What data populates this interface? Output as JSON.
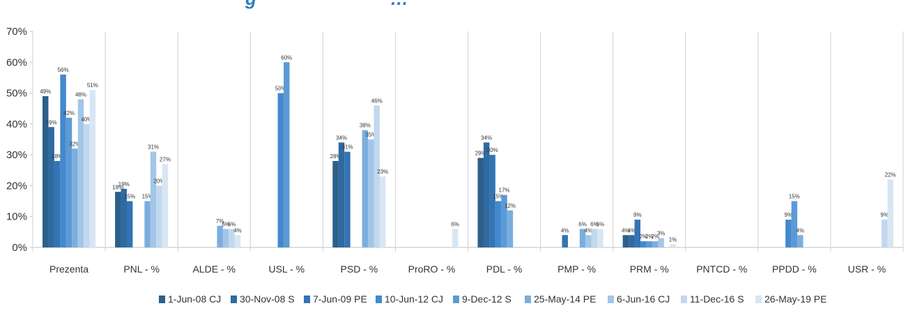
{
  "chart_data": {
    "type": "bar",
    "title": "g",
    "title_fragment_2": "…",
    "ylim": [
      0,
      70
    ],
    "y_ticks": [
      "0%",
      "10%",
      "20%",
      "30%",
      "40%",
      "50%",
      "60%",
      "70%"
    ],
    "grid": "vertical separators between categories and y-axis gridlines not shown",
    "legend_position": "bottom",
    "categories": [
      "Prezenta",
      "PNL - %",
      "ALDE - %",
      "USL - %",
      "PSD - %",
      "ProRO - %",
      "PDL - %",
      "PMP - %",
      "PRM - %",
      "PNTCD - %",
      "PPDD - %",
      "USR - %"
    ],
    "series": [
      {
        "name": "1-Jun-08 CJ",
        "color": "#2c5f8a",
        "values": [
          49,
          18,
          null,
          null,
          28,
          null,
          29,
          null,
          4,
          null,
          null,
          null
        ]
      },
      {
        "name": "30-Nov-08 S",
        "color": "#2f6aa0",
        "values": [
          39,
          19,
          null,
          null,
          34,
          null,
          34,
          null,
          4,
          null,
          null,
          null
        ]
      },
      {
        "name": "7-Jun-09 PE",
        "color": "#3474b4",
        "values": [
          28,
          15,
          null,
          null,
          31,
          null,
          30,
          4,
          9,
          null,
          null,
          null
        ]
      },
      {
        "name": "10-Jun-12 CJ",
        "color": "#4389cd",
        "values": [
          56,
          null,
          null,
          50,
          null,
          null,
          15,
          null,
          2,
          null,
          9,
          null
        ]
      },
      {
        "name": "9-Dec-12 S",
        "color": "#5b9ad6",
        "values": [
          42,
          null,
          null,
          60,
          null,
          null,
          17,
          null,
          2,
          null,
          15,
          null
        ]
      },
      {
        "name": "25-May-14 PE",
        "color": "#7aaede",
        "values": [
          32,
          15,
          7,
          null,
          38,
          null,
          12,
          6,
          2,
          null,
          4,
          null
        ]
      },
      {
        "name": "6-Jun-16 CJ",
        "color": "#a3c6e8",
        "values": [
          48,
          31,
          6,
          null,
          35,
          null,
          null,
          4,
          3,
          null,
          null,
          null
        ]
      },
      {
        "name": "11-Dec-16 S",
        "color": "#c2d8ef",
        "values": [
          40,
          20,
          6,
          null,
          46,
          null,
          null,
          6,
          null,
          null,
          null,
          9
        ]
      },
      {
        "name": "26-May-19 PE",
        "color": "#d8e6f4",
        "values": [
          51,
          27,
          4,
          null,
          23,
          6,
          null,
          6,
          1,
          null,
          null,
          22
        ]
      }
    ]
  }
}
